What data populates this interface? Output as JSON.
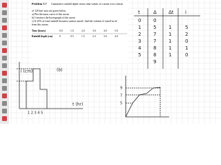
{
  "problem": {
    "title": "Problem 5.7",
    "lines": [
      "Cumulative rainfall depth versus time values of a storm over a basin",
      "of 120 km² area are given below.",
      "a) Plot the mass curve of this storm",
      "b) Construct the hyetograph of this storm",
      "c) If 25% of total rainfall becomes surface runoff, find the volume of runoff in m³",
      "from this storm."
    ]
  },
  "table": {
    "rows": [
      [
        "Time (hours)",
        "0.0",
        "1.0",
        "2.0",
        "3.0",
        "4.0",
        "5.0"
      ],
      [
        "Rainfall depth (cm)",
        "0",
        "0.5",
        "1.5",
        "2.3",
        "3.6",
        "4.0"
      ]
    ]
  },
  "notes": {
    "header": [
      "t",
      "Δ",
      "Δt",
      "i"
    ],
    "rows": [
      [
        "0",
        "0",
        "",
        ""
      ],
      [
        "1",
        "5",
        "1",
        "5"
      ],
      [
        "2",
        "7",
        "1",
        "2"
      ],
      [
        "3",
        "7",
        "1",
        "0"
      ],
      [
        "4",
        "8",
        "1",
        "1"
      ],
      [
        "5",
        "8",
        "1",
        "0"
      ],
      [
        "",
        "9",
        "",
        ""
      ]
    ]
  },
  "sketch": {
    "y_label": "i (cm)",
    "part": "(b)",
    "x_label": "t (hr)",
    "x_ticks": "1 2 3 4 5",
    "y_ticks": [
      "9",
      "7",
      "5"
    ]
  }
}
